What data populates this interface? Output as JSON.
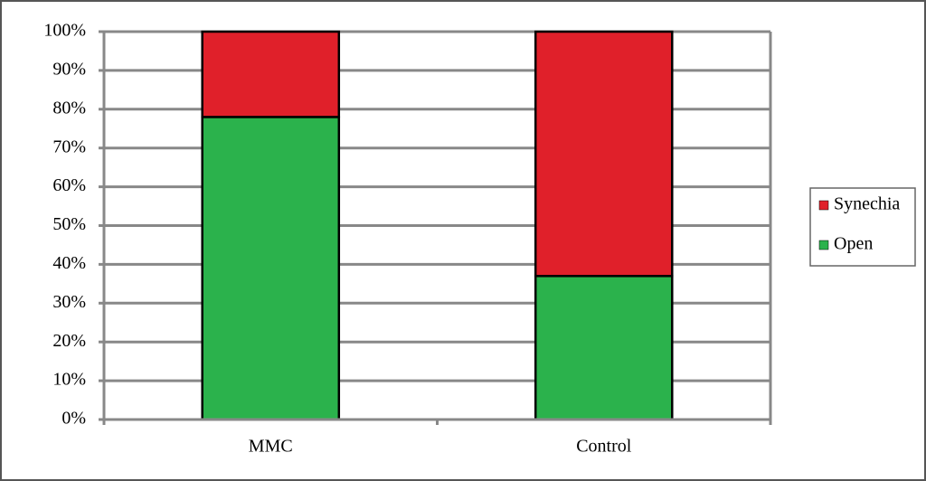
{
  "chart_data": {
    "type": "stacked-bar",
    "categories": [
      "MMC",
      "Control"
    ],
    "series": [
      {
        "name": "Open",
        "color": "#2bb24c",
        "values": [
          78,
          37
        ]
      },
      {
        "name": "Synechia",
        "color": "#e0202a",
        "values": [
          22,
          63
        ]
      }
    ],
    "ylim": [
      0,
      100
    ],
    "yticks": [
      {
        "value": 0,
        "label": "0%"
      },
      {
        "value": 10,
        "label": "10%"
      },
      {
        "value": 20,
        "label": "20%"
      },
      {
        "value": 30,
        "label": "30%"
      },
      {
        "value": 40,
        "label": "40%"
      },
      {
        "value": 50,
        "label": "50%"
      },
      {
        "value": 60,
        "label": "60%"
      },
      {
        "value": 70,
        "label": "70%"
      },
      {
        "value": 80,
        "label": "80%"
      },
      {
        "value": 90,
        "label": "90%"
      },
      {
        "value": 100,
        "label": "100%"
      }
    ],
    "grid": true,
    "legend": "right"
  }
}
